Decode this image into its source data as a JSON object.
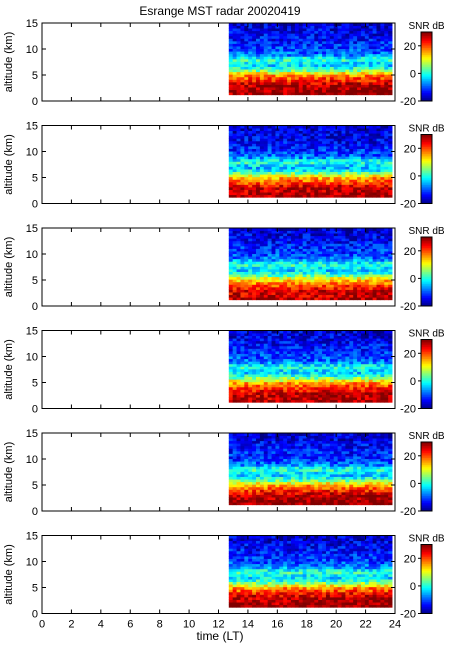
{
  "chart_data": {
    "type": "heatmap",
    "title": "Esrange MST radar 20020419",
    "xlabel": "time (LT)",
    "ylabel": "altitude (km)",
    "xlim": [
      0,
      24
    ],
    "ylim": [
      0,
      15
    ],
    "xticks": [
      "0",
      "2",
      "4",
      "6",
      "8",
      "10",
      "12",
      "14",
      "16",
      "18",
      "20",
      "22",
      "24"
    ],
    "yticks": [
      "0",
      "5",
      "10",
      "15"
    ],
    "data_time_range": [
      12.7,
      23.8
    ],
    "data_altitude_range": [
      1.2,
      15
    ],
    "colorbar": {
      "label": "SNR dB",
      "range": [
        -20,
        30
      ],
      "ticks": [
        "-20",
        "0",
        "20"
      ],
      "colormap": "jet"
    },
    "panels": [
      {
        "index": 1,
        "snr_profile_db": [
          [
            1.5,
            28
          ],
          [
            3,
            27
          ],
          [
            5,
            16
          ],
          [
            6,
            3
          ],
          [
            7,
            -4
          ],
          [
            8,
            2
          ],
          [
            9,
            -8
          ],
          [
            10,
            -10
          ],
          [
            12,
            -13
          ],
          [
            15,
            -16
          ]
        ]
      },
      {
        "index": 2,
        "snr_profile_db": [
          [
            1.5,
            27
          ],
          [
            3,
            26
          ],
          [
            5,
            14
          ],
          [
            6,
            2
          ],
          [
            7,
            -5
          ],
          [
            8,
            1
          ],
          [
            9,
            -8
          ],
          [
            10,
            -11
          ],
          [
            12,
            -14
          ],
          [
            15,
            -16
          ]
        ]
      },
      {
        "index": 3,
        "snr_profile_db": [
          [
            1.5,
            26
          ],
          [
            3,
            25
          ],
          [
            5,
            13
          ],
          [
            6,
            2
          ],
          [
            7,
            -4
          ],
          [
            8,
            2
          ],
          [
            9,
            -7
          ],
          [
            10,
            -10
          ],
          [
            12,
            -13
          ],
          [
            15,
            -16
          ]
        ]
      },
      {
        "index": 4,
        "snr_profile_db": [
          [
            1.5,
            27
          ],
          [
            3,
            26
          ],
          [
            5,
            15
          ],
          [
            6,
            3
          ],
          [
            7,
            -4
          ],
          [
            8,
            1
          ],
          [
            9,
            -8
          ],
          [
            10,
            -10
          ],
          [
            12,
            -13
          ],
          [
            15,
            -16
          ]
        ]
      },
      {
        "index": 5,
        "snr_profile_db": [
          [
            1.5,
            28
          ],
          [
            3,
            27
          ],
          [
            5,
            15
          ],
          [
            6,
            2
          ],
          [
            7,
            -4
          ],
          [
            8,
            2
          ],
          [
            9,
            -8
          ],
          [
            10,
            -11
          ],
          [
            12,
            -13
          ],
          [
            15,
            -16
          ]
        ]
      },
      {
        "index": 6,
        "snr_profile_db": [
          [
            1.5,
            28
          ],
          [
            3,
            27
          ],
          [
            5,
            16
          ],
          [
            6,
            3
          ],
          [
            7,
            -3
          ],
          [
            8,
            2
          ],
          [
            9,
            -7
          ],
          [
            10,
            -10
          ],
          [
            12,
            -13
          ],
          [
            15,
            -16
          ]
        ]
      }
    ]
  }
}
